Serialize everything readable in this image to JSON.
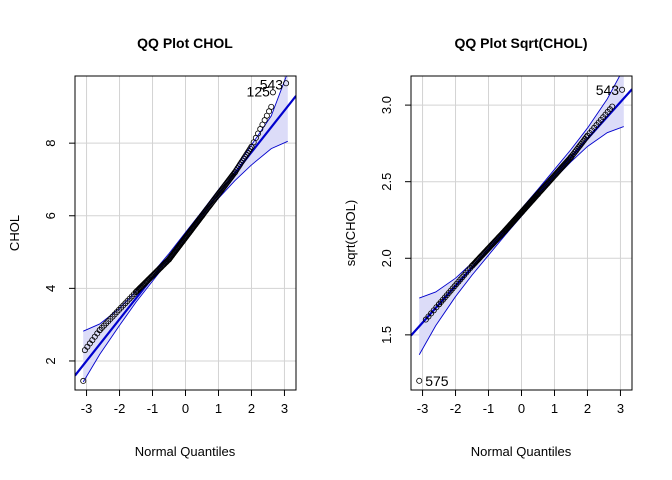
{
  "chart_data": [
    {
      "type": "scatter",
      "subtype": "qq-plot",
      "title": "QQ Plot CHOL",
      "xlabel": "Normal Quantiles",
      "ylabel": "CHOL",
      "xlim": [
        -3.35,
        3.35
      ],
      "ylim": [
        1.2,
        9.85
      ],
      "xticks": [
        -3,
        -2,
        -1,
        0,
        1,
        2,
        3
      ],
      "xtick_labels": [
        "-3",
        "-2",
        "-1",
        "0",
        "1",
        "2",
        "3"
      ],
      "yticks": [
        2,
        4,
        6,
        8
      ],
      "ytick_labels": [
        "2",
        "4",
        "6",
        "8"
      ],
      "grid": true,
      "colors": {
        "line": "#0000cd",
        "band_fill": "#dcdcf8",
        "band_edge": "#0000cd",
        "points": "#000000",
        "grid": "#d3d3d3"
      },
      "reference_line": {
        "intercept": 5.45,
        "slope": 1.15
      },
      "band": [
        {
          "x": -3.1,
          "lower": 1.42,
          "upper": 2.82
        },
        {
          "x": -2.6,
          "lower": 2.18,
          "upper": 3.02
        },
        {
          "x": -2.0,
          "lower": 2.98,
          "upper": 3.45
        },
        {
          "x": -1.5,
          "lower": 3.62,
          "upper": 3.92
        },
        {
          "x": -1.0,
          "lower": 4.2,
          "upper": 4.42
        },
        {
          "x": -0.5,
          "lower": 4.78,
          "upper": 4.96
        },
        {
          "x": 0.0,
          "lower": 5.36,
          "upper": 5.54
        },
        {
          "x": 0.5,
          "lower": 5.93,
          "upper": 6.12
        },
        {
          "x": 1.0,
          "lower": 6.48,
          "upper": 6.72
        },
        {
          "x": 1.5,
          "lower": 6.97,
          "upper": 7.3
        },
        {
          "x": 2.0,
          "lower": 7.4,
          "upper": 7.95
        },
        {
          "x": 2.6,
          "lower": 7.85,
          "upper": 8.75
        },
        {
          "x": 3.1,
          "lower": 8.05,
          "upper": 9.95
        }
      ],
      "point_segments": [
        {
          "x0": -3.05,
          "x1": -2.6,
          "y0": 2.3,
          "y1": 2.85,
          "n": 7
        },
        {
          "x0": -2.6,
          "x1": -1.5,
          "y0": 2.85,
          "y1": 3.9,
          "n": 18
        },
        {
          "x0": -1.5,
          "x1": -0.5,
          "y0": 3.9,
          "y1": 4.8,
          "n": 40
        },
        {
          "x0": -0.5,
          "x1": 0.5,
          "y0": 4.8,
          "y1": 6.0,
          "n": 55
        },
        {
          "x0": 0.5,
          "x1": 1.5,
          "y0": 6.0,
          "y1": 7.2,
          "n": 40
        },
        {
          "x0": 1.5,
          "x1": 2.0,
          "y0": 7.2,
          "y1": 7.9,
          "n": 14
        },
        {
          "x0": 2.0,
          "x1": 2.6,
          "y0": 7.9,
          "y1": 9.0,
          "n": 10
        }
      ],
      "points": [
        {
          "x": -3.1,
          "y": 1.45
        },
        {
          "x": 2.65,
          "y": 9.4
        },
        {
          "x": 3.05,
          "y": 9.65
        }
      ],
      "annotations": [
        {
          "text": "543",
          "x": 3.05,
          "y": 9.65
        },
        {
          "text": "125",
          "x": 2.65,
          "y": 9.4
        }
      ]
    },
    {
      "type": "scatter",
      "subtype": "qq-plot",
      "title": "QQ Plot Sqrt(CHOL)",
      "xlabel": "Normal Quantiles",
      "ylabel": "sqrt(CHOL)",
      "xlim": [
        -3.35,
        3.35
      ],
      "ylim": [
        1.14,
        3.19
      ],
      "xticks": [
        -3,
        -2,
        -1,
        0,
        1,
        2,
        3
      ],
      "xtick_labels": [
        "-3",
        "-2",
        "-1",
        "0",
        "1",
        "2",
        "3"
      ],
      "yticks": [
        1.5,
        2.0,
        2.5,
        3.0
      ],
      "ytick_labels": [
        "1.5",
        "2.0",
        "2.5",
        "3.0"
      ],
      "grid": true,
      "colors": {
        "line": "#0000cd",
        "band_fill": "#dcdcf8",
        "band_edge": "#0000cd",
        "points": "#000000",
        "grid": "#d3d3d3"
      },
      "reference_line": {
        "intercept": 2.3,
        "slope": 0.24
      },
      "band": [
        {
          "x": -3.1,
          "lower": 1.37,
          "upper": 1.74
        },
        {
          "x": -2.6,
          "lower": 1.56,
          "upper": 1.78
        },
        {
          "x": -2.0,
          "lower": 1.75,
          "upper": 1.87
        },
        {
          "x": -1.5,
          "lower": 1.89,
          "upper": 1.97
        },
        {
          "x": -1.0,
          "lower": 2.02,
          "upper": 2.08
        },
        {
          "x": -0.5,
          "lower": 2.15,
          "upper": 2.2
        },
        {
          "x": 0.0,
          "lower": 2.275,
          "upper": 2.325
        },
        {
          "x": 0.5,
          "lower": 2.4,
          "upper": 2.45
        },
        {
          "x": 1.0,
          "lower": 2.52,
          "upper": 2.58
        },
        {
          "x": 1.5,
          "lower": 2.63,
          "upper": 2.71
        },
        {
          "x": 2.0,
          "lower": 2.73,
          "upper": 2.85
        },
        {
          "x": 2.6,
          "lower": 2.82,
          "upper": 3.04
        },
        {
          "x": 3.1,
          "lower": 2.86,
          "upper": 3.24
        }
      ],
      "point_segments": [
        {
          "x0": -2.9,
          "x1": -2.5,
          "y0": 1.6,
          "y1": 1.7,
          "n": 6
        },
        {
          "x0": -2.5,
          "x1": -1.5,
          "y0": 1.7,
          "y1": 1.95,
          "n": 18
        },
        {
          "x0": -1.5,
          "x1": -0.5,
          "y0": 1.95,
          "y1": 2.18,
          "n": 40
        },
        {
          "x0": -0.5,
          "x1": 0.5,
          "y0": 2.18,
          "y1": 2.42,
          "n": 55
        },
        {
          "x0": 0.5,
          "x1": 1.5,
          "y0": 2.42,
          "y1": 2.66,
          "n": 40
        },
        {
          "x0": 1.5,
          "x1": 2.0,
          "y0": 2.66,
          "y1": 2.8,
          "n": 14
        },
        {
          "x0": 2.0,
          "x1": 2.75,
          "y0": 2.8,
          "y1": 2.99,
          "n": 12
        }
      ],
      "points": [
        {
          "x": -3.1,
          "y": 1.2
        },
        {
          "x": 3.05,
          "y": 3.1
        }
      ],
      "annotations": [
        {
          "text": "543",
          "x": 3.05,
          "y": 3.1
        },
        {
          "text": "575",
          "x": -3.1,
          "y": 1.2
        }
      ]
    }
  ]
}
